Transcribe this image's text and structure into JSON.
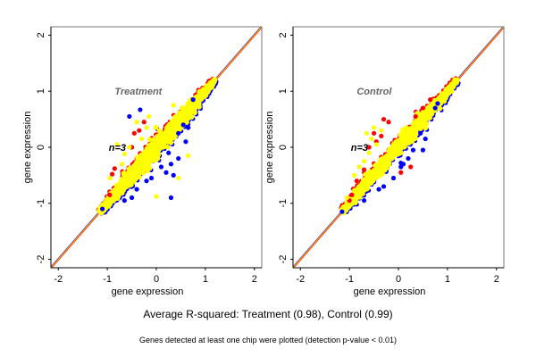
{
  "chart_data": [
    {
      "type": "scatter",
      "title": "Treatment",
      "annotation": "n=3",
      "xlabel": "gene expression",
      "ylabel": "gene expression",
      "xlim": [
        -2.15,
        2.15
      ],
      "ylim": [
        -2.15,
        2.15
      ],
      "xticks": [
        "-2",
        "-1",
        "0",
        "1",
        "2"
      ],
      "yticks": [
        "-2",
        "-1",
        "0",
        "1",
        "2"
      ],
      "tick_values": [
        -2,
        -1,
        0,
        1,
        2
      ],
      "grid": false,
      "reference_line": {
        "type": "y=x",
        "colors": [
          "#ff0000",
          "#0000ff",
          "#ffa500"
        ]
      },
      "series": [
        {
          "name": "blue pairs",
          "color": "#0000ff",
          "points": [
            [
              -0.33,
              0.67
            ],
            [
              -0.55,
              0.55
            ],
            [
              0.3,
              -0.9
            ],
            [
              0.35,
              -0.5
            ],
            [
              0.45,
              -0.2
            ],
            [
              0.55,
              0.4
            ],
            [
              0.65,
              0.35
            ],
            [
              0.6,
              0.1
            ],
            [
              0.25,
              -0.1
            ],
            [
              -0.1,
              -0.55
            ],
            [
              -0.2,
              -0.6
            ],
            [
              -0.4,
              -0.75
            ],
            [
              -0.5,
              -0.9
            ],
            [
              0.1,
              -0.35
            ],
            [
              0.2,
              -0.45
            ],
            [
              -0.65,
              -0.95
            ],
            [
              -1.1,
              -1.1
            ],
            [
              0.45,
              0.25
            ],
            [
              0.3,
              -0.3
            ],
            [
              0.75,
              0.85
            ]
          ]
        },
        {
          "name": "red pairs",
          "color": "#ff0000",
          "points": [
            [
              -0.85,
              -0.38
            ],
            [
              -0.9,
              -0.48
            ],
            [
              -0.45,
              0.25
            ],
            [
              -0.35,
              0.3
            ],
            [
              -0.5,
              0.0
            ],
            [
              -0.95,
              -0.85
            ],
            [
              -0.25,
              0.45
            ]
          ]
        },
        {
          "name": "yellow pairs",
          "color": "#ffff00",
          "points": [
            [
              -0.55,
              0.0
            ],
            [
              -0.65,
              -0.12
            ],
            [
              -0.8,
              0.05
            ],
            [
              -0.95,
              -0.55
            ],
            [
              -0.3,
              0.15
            ],
            [
              0.0,
              -0.88
            ],
            [
              0.65,
              -0.15
            ],
            [
              0.45,
              -0.55
            ],
            [
              -0.15,
              0.55
            ],
            [
              0.35,
              0.75
            ],
            [
              -0.4,
              0.45
            ],
            [
              -0.7,
              -0.3
            ],
            [
              0.5,
              0.5
            ],
            [
              -0.2,
              0.35
            ]
          ]
        }
      ],
      "cloud": {
        "center": [
          0,
          0
        ],
        "extent": [
          -1.15,
          1.2
        ],
        "spread": 0.15,
        "color": "#ffff00"
      }
    },
    {
      "type": "scatter",
      "title": "Control",
      "annotation": "n=3",
      "xlabel": "gene expression",
      "ylabel": "gene expression",
      "xlim": [
        -2.15,
        2.15
      ],
      "ylim": [
        -2.15,
        2.15
      ],
      "xticks": [
        "-2",
        "-1",
        "0",
        "1",
        "2"
      ],
      "yticks": [
        "-2",
        "-1",
        "0",
        "1",
        "2"
      ],
      "tick_values": [
        -2,
        -1,
        0,
        1,
        2
      ],
      "grid": false,
      "reference_line": {
        "type": "y=x",
        "colors": [
          "#ff0000",
          "#0000ff",
          "#ffa500"
        ]
      },
      "series": [
        {
          "name": "blue pairs",
          "color": "#0000ff",
          "points": [
            [
              0.05,
              -0.35
            ],
            [
              0.1,
              -0.3
            ],
            [
              0.05,
              -0.28
            ],
            [
              0.3,
              -0.05
            ],
            [
              0.5,
              -0.05
            ],
            [
              0.45,
              0.25
            ],
            [
              0.55,
              0.15
            ],
            [
              -0.3,
              -0.7
            ],
            [
              -0.4,
              -0.75
            ],
            [
              -0.7,
              -0.95
            ],
            [
              -1.15,
              -1.15
            ],
            [
              0.2,
              -0.2
            ],
            [
              0.75,
              0.7
            ],
            [
              -0.1,
              -0.55
            ],
            [
              0.8,
              0.78
            ]
          ]
        },
        {
          "name": "red pairs",
          "color": "#ff0000",
          "points": [
            [
              -0.3,
              0.5
            ],
            [
              -0.5,
              0.25
            ],
            [
              -0.2,
              0.45
            ],
            [
              -0.45,
              0.1
            ],
            [
              -0.6,
              0.0
            ],
            [
              0.05,
              -0.45
            ],
            [
              0.25,
              -0.35
            ],
            [
              -0.85,
              -0.6
            ],
            [
              -0.95,
              -0.85
            ],
            [
              0.5,
              0.7
            ],
            [
              0.35,
              0.55
            ],
            [
              -0.7,
              -0.4
            ],
            [
              -0.35,
              0.2
            ],
            [
              0.65,
              0.85
            ],
            [
              -1.0,
              -0.95
            ]
          ]
        },
        {
          "name": "yellow pairs",
          "color": "#ffff00",
          "points": [
            [
              -0.65,
              0.25
            ],
            [
              -0.5,
              0.35
            ],
            [
              -0.35,
              0.3
            ],
            [
              -0.55,
              0.15
            ],
            [
              -0.8,
              -0.35
            ],
            [
              -0.9,
              -0.5
            ],
            [
              -0.7,
              -0.25
            ],
            [
              -0.45,
              0.05
            ],
            [
              -1.05,
              -0.9
            ],
            [
              -0.6,
              -0.1
            ]
          ]
        }
      ],
      "cloud": {
        "center": [
          0,
          0
        ],
        "extent": [
          -1.15,
          1.2
        ],
        "spread": 0.12,
        "color": "#ffff00"
      }
    }
  ],
  "caption": "Average R-squared: Treatment (0.98), Control (0.99)",
  "note": "Genes detected at least one chip were plotted (detection p-value < 0.01)"
}
